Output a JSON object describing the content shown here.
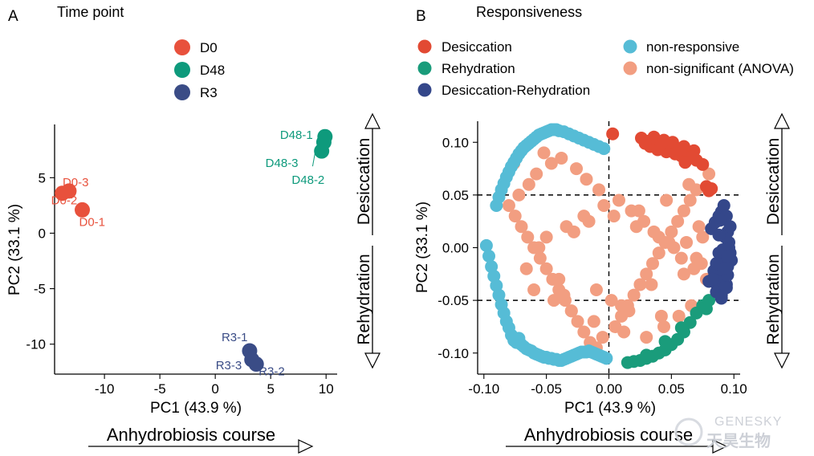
{
  "colors": {
    "D0": "#e8513c",
    "D48": "#0e9a7c",
    "R3": "#3a4c86",
    "desiccation": "#e24a33",
    "rehydration": "#1a9c7b",
    "desiccation_rehydration": "#34478a",
    "non_responsive": "#56bcd6",
    "non_significant": "#f29e81"
  },
  "panel_a": {
    "letter": "A",
    "title": "Time point",
    "legend": [
      "D0",
      "D48",
      "R3"
    ],
    "xlabel": "PC1 (43.9 %)",
    "ylabel": "PC2 (33.1 %)",
    "xticks": [
      "-10",
      "-5",
      "0",
      "5",
      "10"
    ],
    "yticks": [
      "5",
      "0",
      "-5",
      "-10"
    ],
    "course": "Anhydrobiosis course",
    "arrow_top": "Desiccation",
    "arrow_bottom": "Rehydration"
  },
  "panel_b": {
    "letter": "B",
    "title": "Responsiveness",
    "legend": [
      "Desiccation",
      "non-responsive",
      "Rehydration",
      "non-significant (ANOVA)",
      "Desiccation-Rehydration"
    ],
    "xlabel": "PC1 (43.9 %)",
    "ylabel": "PC2 (33.1 %)",
    "xticks": [
      "-0.10",
      "-0.05",
      "0.00",
      "0.05",
      "0.10"
    ],
    "yticks": [
      "0.10",
      "0.05",
      "0.00",
      "-0.05",
      "-0.10"
    ],
    "course": "Anhydrobiosis course",
    "arrow_top": "Desiccation",
    "arrow_bottom": "Rehydration"
  },
  "watermark": {
    "en": "GENESKY",
    "cn": "天昊生物"
  },
  "chart_data": [
    {
      "type": "scatter",
      "title": "Time point",
      "xlabel": "PC1 (43.9 %)",
      "ylabel": "PC2 (33.1 %)",
      "xlim": [
        -14.5,
        11
      ],
      "ylim": [
        -12.7,
        9.8
      ],
      "series": [
        {
          "name": "D0",
          "points": [
            {
              "label": "D0-3",
              "x": -13.2,
              "y": 3.8
            },
            {
              "label": "D0-2",
              "x": -13.8,
              "y": 3.6
            },
            {
              "label": "D0-1",
              "x": -12.0,
              "y": 2.1
            }
          ]
        },
        {
          "name": "D48",
          "points": [
            {
              "label": "D48-1",
              "x": 9.9,
              "y": 8.7
            },
            {
              "label": "D48-3",
              "x": 9.6,
              "y": 7.4
            },
            {
              "label": "D48-2",
              "x": 9.8,
              "y": 8.2
            }
          ]
        },
        {
          "name": "R3",
          "points": [
            {
              "label": "R3-1",
              "x": 3.1,
              "y": -10.6
            },
            {
              "label": "R3-3",
              "x": 3.3,
              "y": -11.4
            },
            {
              "label": "R3-2",
              "x": 3.7,
              "y": -11.8
            }
          ]
        }
      ]
    },
    {
      "type": "scatter",
      "title": "Responsiveness",
      "xlabel": "PC1 (43.9 %)",
      "ylabel": "PC2 (33.1 %)",
      "xlim": [
        -0.105,
        0.105
      ],
      "ylim": [
        -0.12,
        0.12
      ],
      "reference_lines": {
        "x": [
          0.0
        ],
        "y": [
          0.05,
          -0.05
        ]
      },
      "series": [
        {
          "name": "Desiccation",
          "x": [
            0.003,
            0.026,
            0.031,
            0.036,
            0.04,
            0.044,
            0.048,
            0.051,
            0.055,
            0.06,
            0.064,
            0.068,
            0.033,
            0.039,
            0.046,
            0.053,
            0.058,
            0.063,
            0.07,
            0.075,
            0.029,
            0.042,
            0.057,
            0.066,
            0.078,
            0.08,
            0.082,
            0.061
          ],
          "y": [
            0.108,
            0.104,
            0.101,
            0.105,
            0.099,
            0.102,
            0.097,
            0.1,
            0.094,
            0.096,
            0.09,
            0.092,
            0.096,
            0.093,
            0.091,
            0.089,
            0.087,
            0.085,
            0.083,
            0.079,
            0.099,
            0.098,
            0.093,
            0.086,
            0.058,
            0.054,
            0.056,
            0.081
          ]
        },
        {
          "name": "Rehydration",
          "x": [
            0.015,
            0.02,
            0.025,
            0.03,
            0.035,
            0.04,
            0.045,
            0.05,
            0.055,
            0.06,
            0.065,
            0.07,
            0.075,
            0.08,
            0.03,
            0.045,
            0.058,
            0.078
          ],
          "y": [
            -0.109,
            -0.108,
            -0.107,
            -0.105,
            -0.103,
            -0.1,
            -0.097,
            -0.092,
            -0.087,
            -0.08,
            -0.071,
            -0.062,
            -0.055,
            -0.05,
            -0.102,
            -0.089,
            -0.076,
            -0.058
          ]
        },
        {
          "name": "Desiccation-Rehydration",
          "x": [
            0.082,
            0.085,
            0.088,
            0.09,
            0.092,
            0.094,
            0.095,
            0.096,
            0.097,
            0.098,
            0.095,
            0.093,
            0.091,
            0.089,
            0.087,
            0.086,
            0.09,
            0.094,
            0.092,
            0.088,
            0.096,
            0.084,
            0.09,
            0.095,
            0.093,
            0.08,
            0.086,
            0.091,
            0.094,
            0.097,
            0.089,
            0.083,
            0.092,
            0.088,
            0.095
          ],
          "y": [
            0.018,
            0.024,
            0.03,
            0.034,
            0.04,
            0.03,
            0.015,
            0.005,
            -0.005,
            -0.012,
            -0.018,
            -0.023,
            -0.028,
            -0.033,
            -0.038,
            -0.042,
            -0.045,
            -0.035,
            -0.01,
            -0.005,
            0.0,
            -0.022,
            -0.048,
            -0.026,
            0.01,
            -0.032,
            -0.015,
            -0.002,
            -0.038,
            0.02,
            0.026,
            -0.03,
            -0.02,
            0.012,
            -0.008
          ]
        },
        {
          "name": "non-responsive",
          "x": [
            -0.098,
            -0.096,
            -0.094,
            -0.092,
            -0.09,
            -0.088,
            -0.086,
            -0.084,
            -0.082,
            -0.08,
            -0.078,
            -0.076,
            -0.074,
            -0.072,
            -0.07,
            -0.068,
            -0.066,
            -0.064,
            -0.062,
            -0.06,
            -0.058,
            -0.056,
            -0.054,
            -0.052,
            -0.05,
            -0.048,
            -0.046,
            -0.044,
            -0.042,
            -0.04,
            -0.038,
            -0.036,
            -0.034,
            -0.032,
            -0.03,
            -0.028,
            -0.026,
            -0.024,
            -0.022,
            -0.02,
            -0.018,
            -0.016,
            -0.014,
            -0.012,
            -0.01,
            -0.008,
            -0.006,
            -0.004,
            -0.002,
            -0.09,
            -0.088,
            -0.086,
            -0.084,
            -0.082,
            -0.08,
            -0.078,
            -0.076,
            -0.074,
            -0.072,
            -0.07,
            -0.068,
            -0.066,
            -0.064,
            -0.062,
            -0.06,
            -0.058,
            -0.056,
            -0.054,
            -0.052,
            -0.05,
            -0.048,
            -0.046,
            -0.044,
            -0.042,
            -0.04,
            -0.036,
            -0.032,
            -0.028,
            -0.024,
            -0.02,
            -0.016,
            -0.012,
            -0.008,
            -0.004
          ],
          "y": [
            0.002,
            -0.008,
            -0.018,
            -0.027,
            -0.036,
            -0.045,
            -0.054,
            -0.062,
            -0.07,
            -0.076,
            -0.083,
            -0.088,
            -0.09,
            -0.086,
            -0.092,
            -0.094,
            -0.096,
            -0.097,
            -0.098,
            -0.1,
            -0.101,
            -0.102,
            -0.103,
            -0.104,
            -0.104,
            -0.105,
            -0.105,
            -0.106,
            -0.106,
            -0.107,
            -0.107,
            -0.106,
            -0.105,
            -0.104,
            -0.103,
            -0.102,
            -0.101,
            -0.1,
            -0.099,
            -0.099,
            -0.099,
            -0.098,
            -0.099,
            -0.1,
            -0.101,
            -0.102,
            -0.103,
            -0.104,
            -0.105,
            0.04,
            0.048,
            0.055,
            0.061,
            0.067,
            0.072,
            0.077,
            0.081,
            0.085,
            0.089,
            0.092,
            0.095,
            0.097,
            0.099,
            0.101,
            0.103,
            0.105,
            0.107,
            0.108,
            0.109,
            0.11,
            0.111,
            0.112,
            0.112,
            0.112,
            0.111,
            0.11,
            0.108,
            0.106,
            0.104,
            0.102,
            0.1,
            0.098,
            0.096,
            0.094
          ]
        },
        {
          "name": "non-significant (ANOVA)",
          "x": [
            -0.08,
            -0.075,
            -0.07,
            -0.065,
            -0.06,
            -0.055,
            -0.05,
            -0.045,
            -0.04,
            -0.035,
            -0.03,
            -0.025,
            -0.02,
            -0.015,
            -0.01,
            -0.005,
            0.005,
            0.01,
            0.015,
            0.02,
            0.025,
            0.03,
            0.035,
            0.04,
            0.045,
            0.05,
            0.055,
            0.06,
            0.065,
            0.07,
            0.075,
            -0.072,
            -0.064,
            -0.058,
            -0.046,
            -0.038,
            -0.026,
            -0.018,
            -0.008,
            0.008,
            0.018,
            0.028,
            0.036,
            0.048,
            0.058,
            0.068,
            0.078,
            -0.06,
            -0.044,
            -0.03,
            -0.012,
            0.012,
            0.03,
            0.044,
            0.056,
            0.066,
            -0.05,
            -0.034,
            -0.02,
            -0.004,
            0.004,
            0.022,
            0.04,
            0.052,
            0.07,
            -0.066,
            -0.04,
            -0.01,
            0.002,
            0.016,
            0.034,
            0.06,
            0.074,
            -0.056,
            -0.028,
            -0.016,
            0.024,
            0.046,
            0.064,
            0.08,
            -0.076,
            -0.052,
            -0.036,
            0.01,
            0.042,
            0.062,
            0.072
          ],
          "y": [
            0.04,
            0.03,
            0.02,
            0.01,
            0.0,
            -0.01,
            -0.02,
            -0.03,
            -0.04,
            -0.05,
            -0.06,
            -0.07,
            -0.08,
            -0.09,
            -0.095,
            -0.085,
            -0.075,
            -0.065,
            -0.055,
            -0.045,
            -0.035,
            -0.025,
            -0.015,
            -0.005,
            0.005,
            0.015,
            0.025,
            0.035,
            0.045,
            0.055,
            0.01,
            0.05,
            0.06,
            0.07,
            0.08,
            0.085,
            0.075,
            0.065,
            0.055,
            0.045,
            0.035,
            0.025,
            0.015,
            0.005,
            -0.01,
            -0.02,
            -0.03,
            -0.04,
            -0.05,
            -0.06,
            -0.07,
            -0.08,
            -0.085,
            -0.075,
            -0.065,
            -0.055,
            0.01,
            0.02,
            0.03,
            0.04,
            0.03,
            0.02,
            0.01,
            0.0,
            -0.01,
            -0.02,
            -0.03,
            -0.04,
            -0.05,
            -0.06,
            -0.035,
            -0.025,
            -0.015,
            0.0,
            0.015,
            0.025,
            0.035,
            0.045,
            0.06,
            0.07,
            0.08,
            0.09,
            -0.045,
            -0.055,
            -0.065,
            0.005,
            0.02
          ]
        }
      ]
    }
  ]
}
